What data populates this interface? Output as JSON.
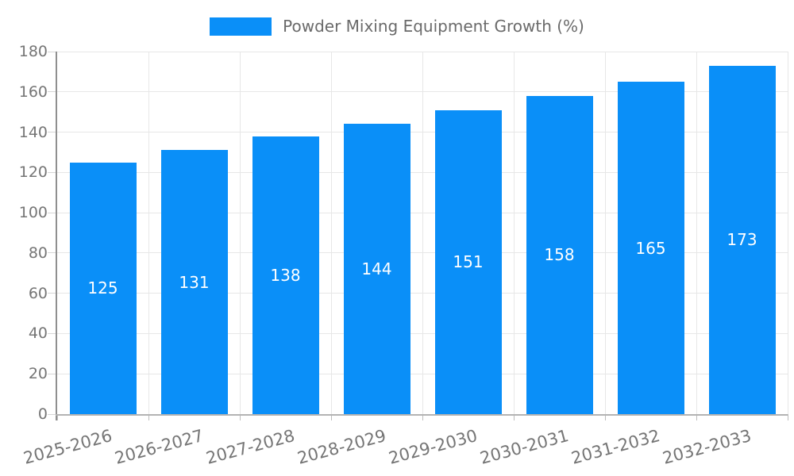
{
  "legend": {
    "label": "Powder Mixing Equipment Growth (%)"
  },
  "chart_data": {
    "type": "bar",
    "title": "Powder Mixing Equipment Growth (%)",
    "categories": [
      "2025-2026",
      "2026-2027",
      "2027-2028",
      "2028-2029",
      "2029-2030",
      "2030-2031",
      "2031-2032",
      "2032-2033"
    ],
    "values": [
      125,
      131,
      138,
      144,
      151,
      158,
      165,
      173
    ],
    "xlabel": "",
    "ylabel": "",
    "ylim": [
      0,
      180
    ],
    "yticks": [
      0,
      20,
      40,
      60,
      80,
      100,
      120,
      140,
      160,
      180
    ],
    "grid": true,
    "legend_position": "top-center",
    "value_labels": "inside-center",
    "colors": {
      "bar": "#0a8ff8",
      "value_label": "#ffffff",
      "axis_text": "#757575",
      "title_text": "#6a6a6a",
      "grid_line": "#e7e7e7",
      "axis_line_y": "#8f8f8f",
      "axis_line_x": "#b3b3b3"
    }
  }
}
